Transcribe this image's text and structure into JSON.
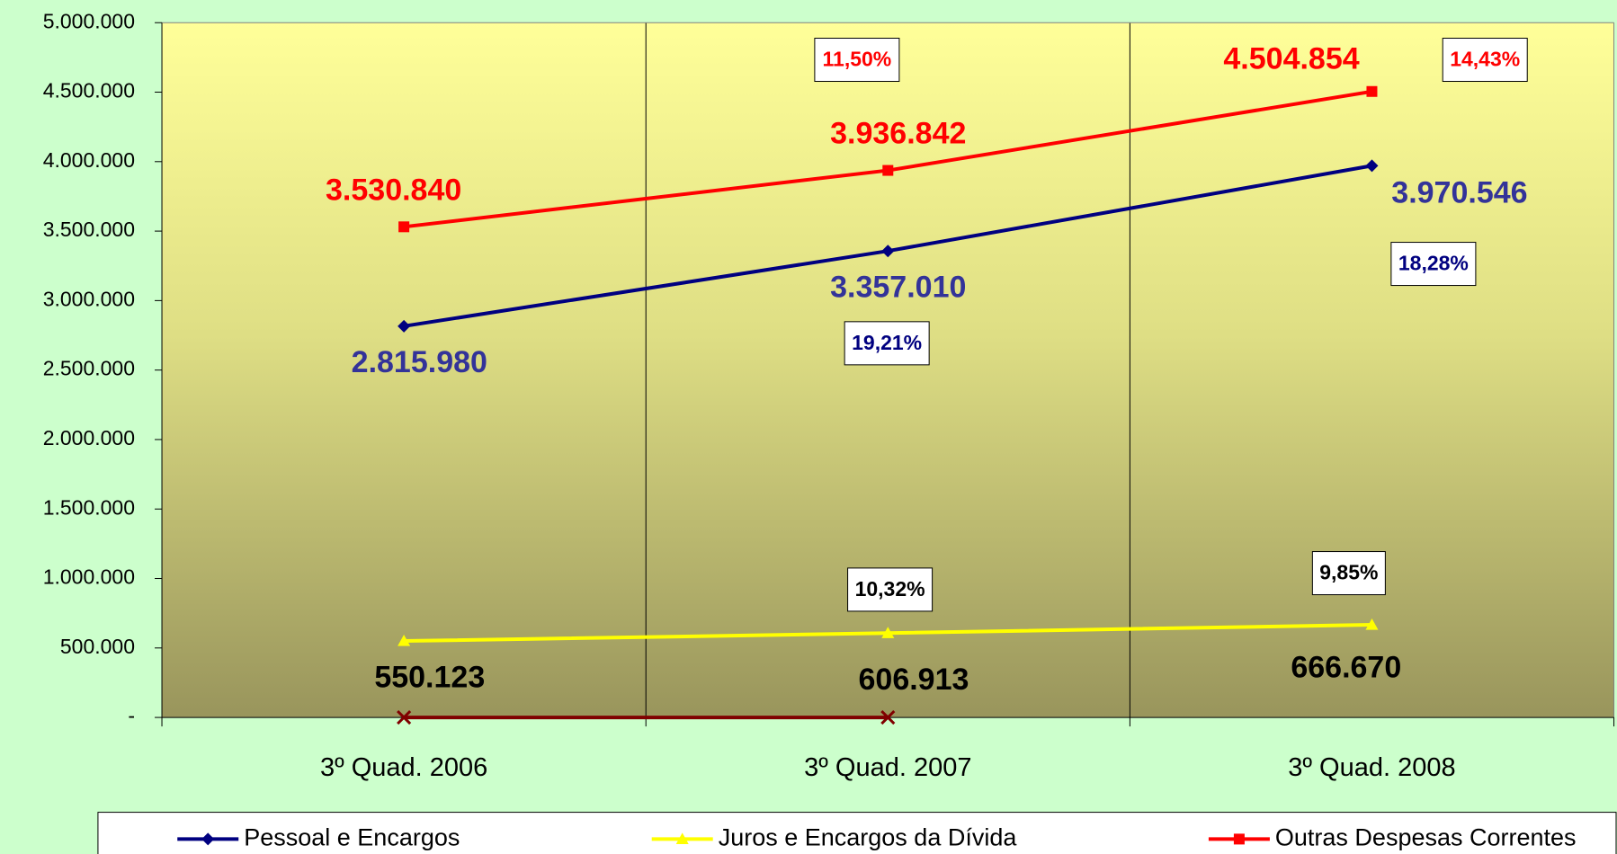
{
  "chart_data": {
    "type": "line",
    "categories": [
      "3º Quad. 2006",
      "3º Quad. 2007",
      "3º Quad. 2008"
    ],
    "series": [
      {
        "name": "Pessoal e Encargos",
        "color": "#000080",
        "marker": "diamond",
        "values": [
          2815980,
          3357010,
          3970546
        ],
        "value_labels": [
          "2.815.980",
          "3.357.010",
          "3.970.546"
        ],
        "label_color": "#333399"
      },
      {
        "name": "Juros e Encargos da Dívida",
        "color": "#ffff00",
        "marker": "triangle",
        "values": [
          550123,
          606913,
          666670
        ],
        "value_labels": [
          "550.123",
          "606.913",
          "666.670"
        ],
        "label_color": "#000000"
      },
      {
        "name": "Outras Despesas Correntes",
        "color": "#ff0000",
        "marker": "square",
        "values": [
          3530840,
          3936842,
          4504854
        ],
        "value_labels": [
          "3.530.840",
          "3.936.842",
          "4.504.854"
        ],
        "label_color": "#ff0000"
      },
      {
        "color": "#800000",
        "marker": "x",
        "values": [
          0,
          0,
          null
        ]
      }
    ],
    "annotations": [
      {
        "text": "11,50%",
        "color": "#ff0000"
      },
      {
        "text": "14,43%",
        "color": "#ff0000"
      },
      {
        "text": "18,28%",
        "color": "#000080"
      },
      {
        "text": "19,21%",
        "color": "#000080"
      },
      {
        "text": "10,32%",
        "color": "#000000"
      },
      {
        "text": "9,85%",
        "color": "#000000"
      }
    ],
    "ylim": [
      0,
      5000000
    ],
    "yticks": [
      {
        "value": 0,
        "label": "-"
      },
      {
        "value": 500000,
        "label": "500.000"
      },
      {
        "value": 1000000,
        "label": "1.000.000"
      },
      {
        "value": 1500000,
        "label": "1.500.000"
      },
      {
        "value": 2000000,
        "label": "2.000.000"
      },
      {
        "value": 2500000,
        "label": "2.500.000"
      },
      {
        "value": 3000000,
        "label": "3.000.000"
      },
      {
        "value": 3500000,
        "label": "3.500.000"
      },
      {
        "value": 4000000,
        "label": "4.000.000"
      },
      {
        "value": 4500000,
        "label": "4.500.000"
      },
      {
        "value": 5000000,
        "label": "5.000.000"
      }
    ],
    "grid": false,
    "legend": "bottom"
  }
}
